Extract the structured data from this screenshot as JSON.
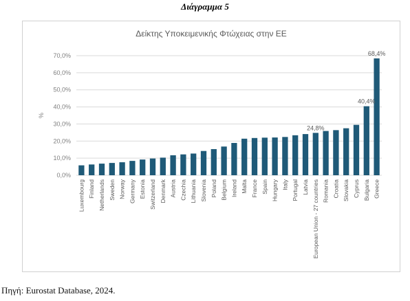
{
  "heading": "Διάγραμμα 5",
  "source": "Πηγή: Eurostat Database, 2024.",
  "chart_data": {
    "type": "bar",
    "title": "Δείκτης Υποκειμενικής Φτώχειας στην ΕΕ",
    "xlabel": "",
    "ylabel": "%",
    "ylim": [
      0,
      70
    ],
    "yticks": [
      "0,0%",
      "10,0%",
      "20,0%",
      "30,0%",
      "40,0%",
      "50,0%",
      "60,0%",
      "70,0%"
    ],
    "grid": true,
    "bar_color": "#1f5a78",
    "categories": [
      "Luxembourg",
      "Finland",
      "Netherlands",
      "Sweden",
      "Norway",
      "Germany",
      "Estonia",
      "Switzerland",
      "Denmark",
      "Austria",
      "Czechia",
      "Lithuania",
      "Slovenia",
      "Poland",
      "Belgium",
      "Ireland",
      "Malta",
      "France",
      "Spain",
      "Hungary",
      "Italy",
      "Portugal",
      "Latvia",
      "European Union - 27 countries",
      "Romania",
      "Croatia",
      "Slovakia",
      "Cyprus",
      "Bulgaria",
      "Greece"
    ],
    "values": [
      5.8,
      6.3,
      6.8,
      7.2,
      7.6,
      8.4,
      9.2,
      9.8,
      10.3,
      11.7,
      12.2,
      12.7,
      14.2,
      15.3,
      16.8,
      18.9,
      21.4,
      21.8,
      22.0,
      22.1,
      22.4,
      23.4,
      24.1,
      24.8,
      25.9,
      26.4,
      27.5,
      29.5,
      40.4,
      68.4
    ],
    "data_labels": [
      {
        "index": 23,
        "text": "24,8%"
      },
      {
        "index": 28,
        "text": "40,4%"
      },
      {
        "index": 29,
        "text": "68,4%"
      }
    ]
  }
}
